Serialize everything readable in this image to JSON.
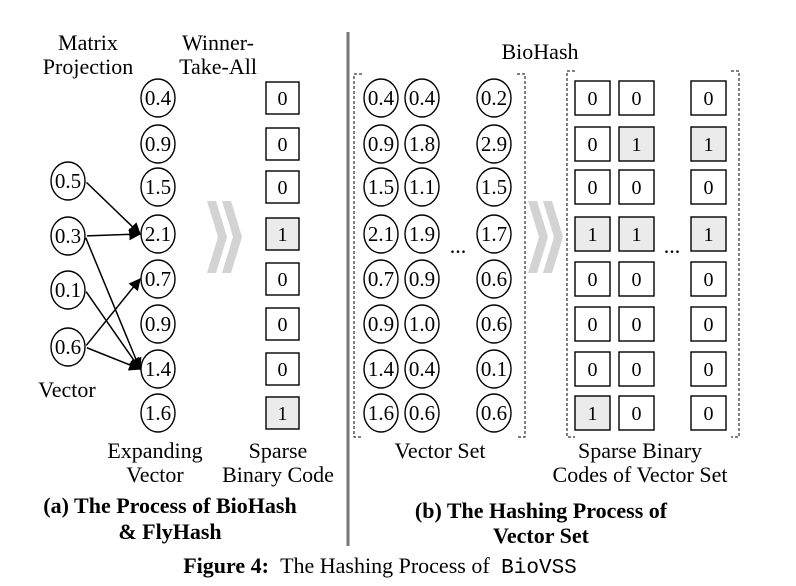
{
  "left": {
    "head_matrix": [
      "Matrix",
      "Projection"
    ],
    "head_wta": [
      "Winner-",
      "Take-All"
    ],
    "input_vector": [
      "0.5",
      "0.3",
      "0.1",
      "0.6"
    ],
    "input_label": "Vector",
    "expanding_vector": [
      "0.4",
      "0.9",
      "1.5",
      "2.1",
      "0.7",
      "0.9",
      "1.4",
      "1.6"
    ],
    "expanding_label": [
      "Expanding",
      "Vector"
    ],
    "sparse_code": [
      "0",
      "0",
      "0",
      "1",
      "0",
      "0",
      "0",
      "1"
    ],
    "sparse_label": [
      "Sparse",
      "Binary Code"
    ],
    "caption": [
      "(a) The Process of BioHash",
      "& FlyHash"
    ]
  },
  "right": {
    "title": "BioHash",
    "vector_columns": [
      [
        "0.4",
        "0.9",
        "1.5",
        "2.1",
        "0.7",
        "0.9",
        "1.4",
        "1.6"
      ],
      [
        "0.4",
        "1.8",
        "1.1",
        "1.9",
        "0.9",
        "1.0",
        "0.4",
        "0.6"
      ],
      [
        "0.2",
        "2.9",
        "1.5",
        "1.7",
        "0.6",
        "0.6",
        "0.1",
        "0.6"
      ]
    ],
    "vector_set_label": "Vector Set",
    "code_columns": [
      [
        "0",
        "0",
        "0",
        "1",
        "0",
        "0",
        "0",
        "1"
      ],
      [
        "0",
        "1",
        "0",
        "1",
        "0",
        "0",
        "0",
        "0"
      ],
      [
        "0",
        "1",
        "0",
        "1",
        "0",
        "0",
        "0",
        "0"
      ]
    ],
    "code_label": [
      "Sparse Binary",
      "Codes of Vector Set"
    ],
    "ellipsis": "...",
    "caption": [
      "(b) The Hashing Process of",
      "Vector Set"
    ]
  },
  "figure_caption": {
    "label": "Figure 4:",
    "text": "The Hashing Process of",
    "name": "BioVSS"
  },
  "colors": {
    "highlight_fill": "#ebebeb",
    "chevron": "#d3d3d3"
  }
}
